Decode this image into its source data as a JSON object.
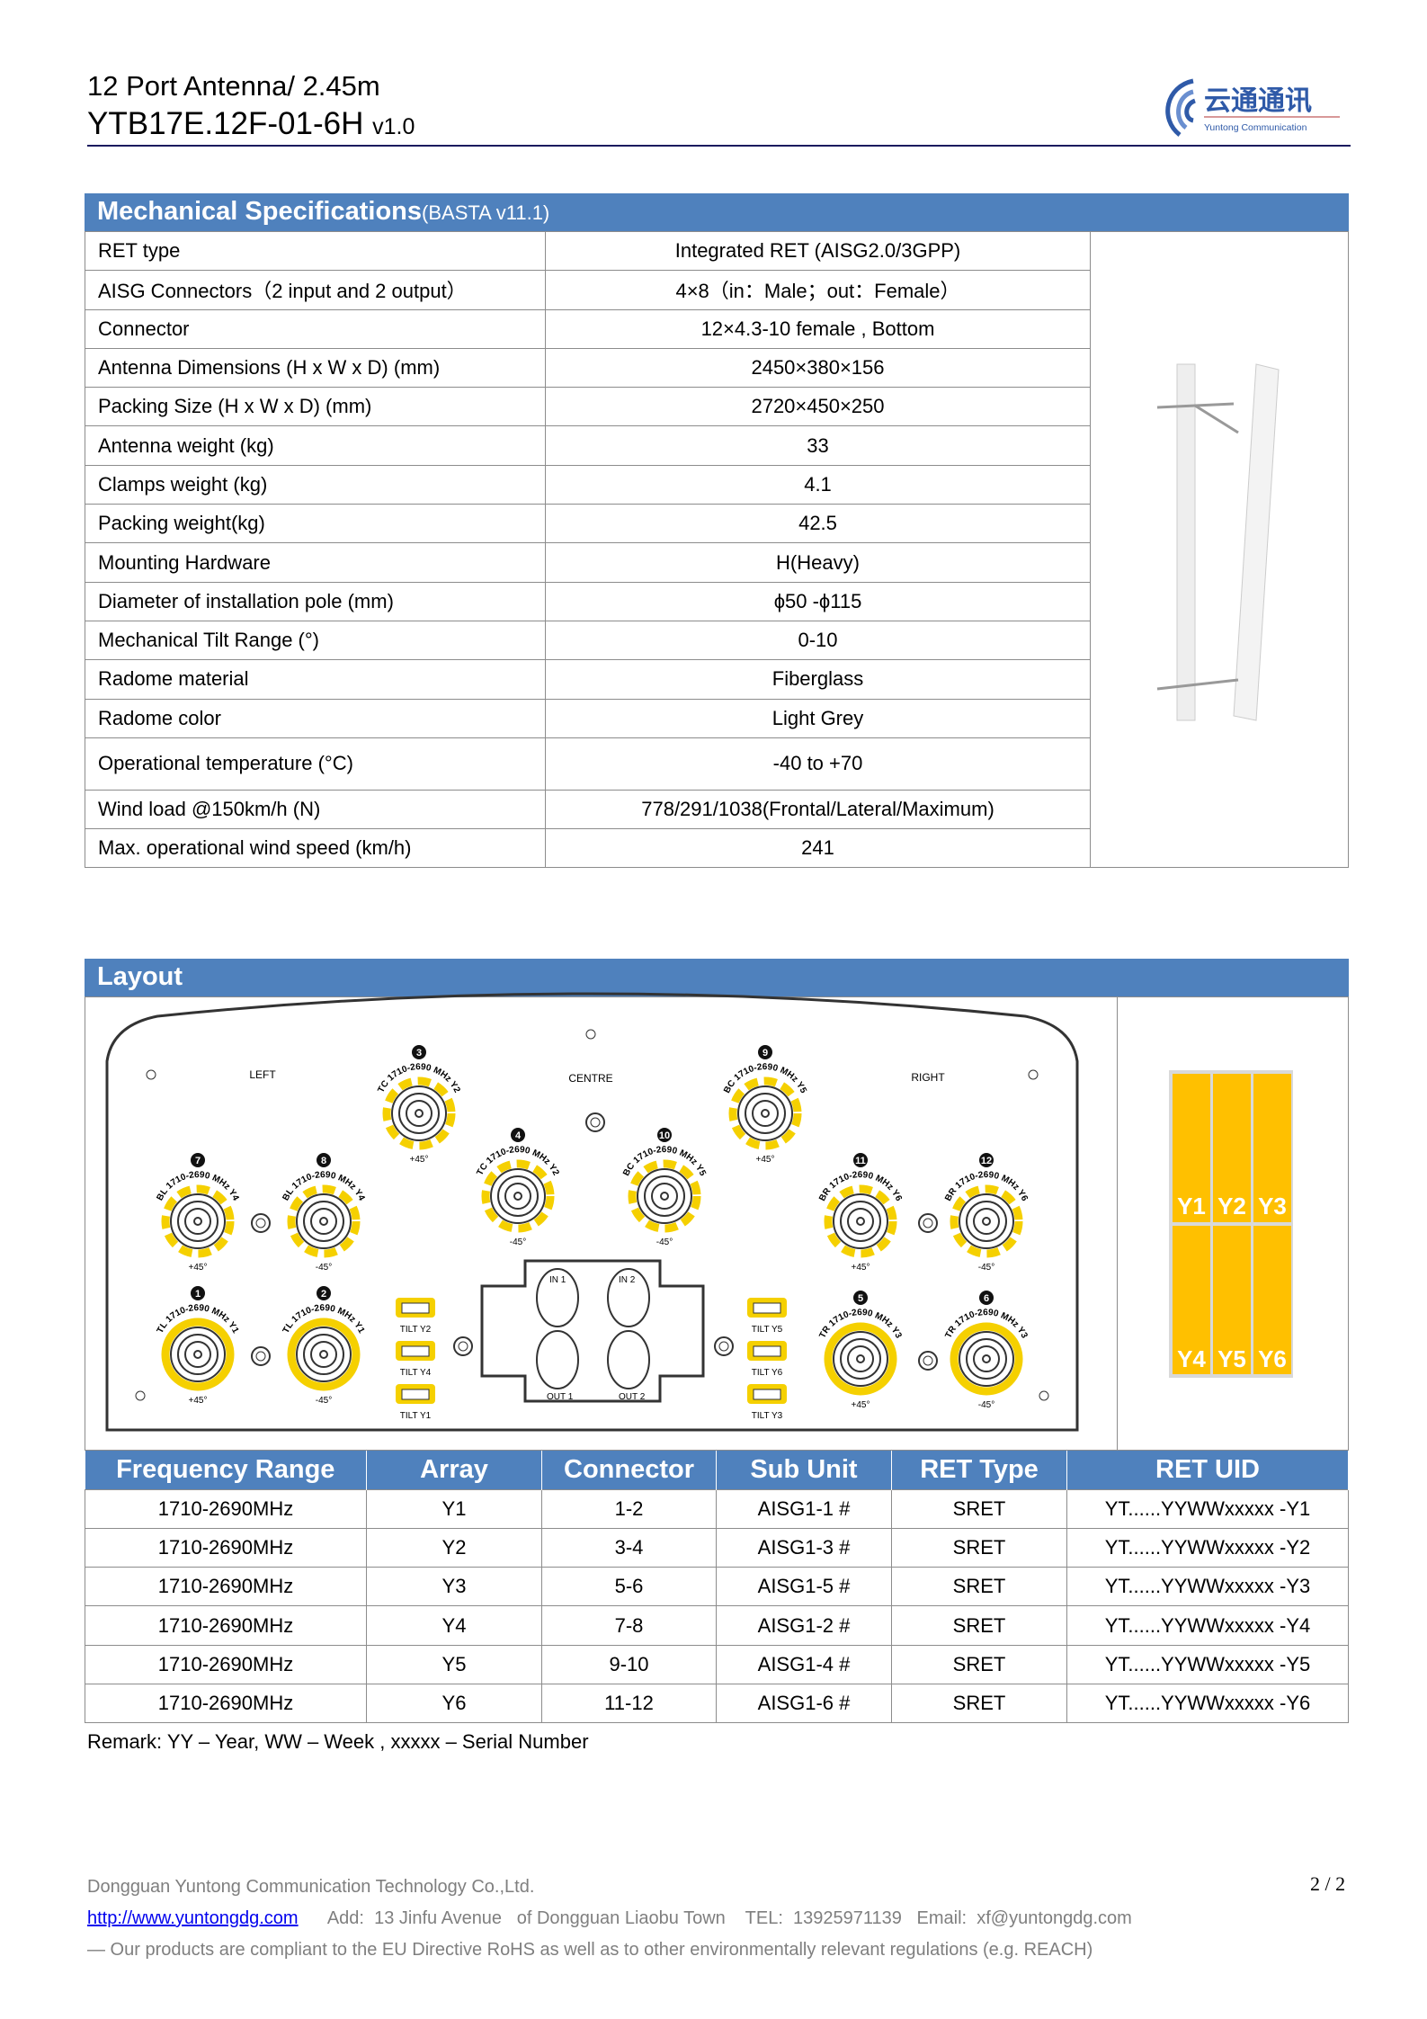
{
  "header": {
    "title": "12 Port Antenna/ 2.45m",
    "model": "YTB17E.12F-01-6H",
    "version": "v1.0",
    "logo_cn": "云通通讯",
    "logo_en": "Yuntong Communication"
  },
  "mechanical": {
    "title": "Mechanical Specifications",
    "subtitle": "(BASTA v11.1)",
    "rows": [
      [
        "RET type",
        "Integrated RET (AISG2.0/3GPP)"
      ],
      [
        "AISG Connectors（2 input and 2 output）",
        "4×8（in：Male；out：Female）"
      ],
      [
        "Connector",
        "12×4.3-10 female , Bottom"
      ],
      [
        "Antenna Dimensions (H x W x D) (mm)",
        "2450×380×156"
      ],
      [
        "Packing Size (H x W x D) (mm)",
        "2720×450×250"
      ],
      [
        "Antenna weight (kg)",
        "33"
      ],
      [
        "Clamps weight (kg)",
        "4.1"
      ],
      [
        "Packing weight(kg)",
        "42.5"
      ],
      [
        "Mounting Hardware",
        "H(Heavy)"
      ],
      [
        "Diameter of installation pole (mm)",
        "ϕ50 -ϕ115"
      ],
      [
        "Mechanical Tilt Range (°)",
        "0-10"
      ],
      [
        "Radome material",
        "Fiberglass"
      ],
      [
        "Radome color",
        "Light Grey"
      ],
      [
        "Operational temperature (°C)",
        "-40 to +70"
      ],
      [
        "Wind load @150km/h (N)",
        "778/291/1038(Frontal/Lateral/Maximum)"
      ],
      [
        "Max. operational wind speed (km/h)",
        "241"
      ]
    ]
  },
  "layout": {
    "title": "Layout",
    "left": "LEFT",
    "centre": "CENTRE",
    "right": "RIGHT",
    "connectors": [
      {
        "n": "3",
        "code": "TC",
        "band": "1710-2690 MHz",
        "array": "Y2",
        "pol": "+45°"
      },
      {
        "n": "9",
        "code": "BC",
        "band": "1710-2690 MHz",
        "array": "Y5",
        "pol": "+45°"
      },
      {
        "n": "4",
        "code": "TC",
        "band": "1710-2690 MHz",
        "array": "Y2",
        "pol": "-45°"
      },
      {
        "n": "10",
        "code": "BC",
        "band": "1710-2690 MHz",
        "array": "Y5",
        "pol": "-45°"
      },
      {
        "n": "7",
        "code": "BL",
        "band": "1710-2690 MHz",
        "array": "Y4",
        "pol": "+45°"
      },
      {
        "n": "8",
        "code": "BL",
        "band": "1710-2690 MHz",
        "array": "Y4",
        "pol": "-45°"
      },
      {
        "n": "11",
        "code": "BR",
        "band": "1710-2690 MHz",
        "array": "Y6",
        "pol": "+45°"
      },
      {
        "n": "12",
        "code": "BR",
        "band": "1710-2690 MHz",
        "array": "Y6",
        "pol": "-45°"
      },
      {
        "n": "1",
        "code": "TL",
        "band": "1710-2690 MHz",
        "array": "Y1",
        "pol": "+45°"
      },
      {
        "n": "2",
        "code": "TL",
        "band": "1710-2690 MHz",
        "array": "Y1",
        "pol": "-45°"
      },
      {
        "n": "5",
        "code": "TR",
        "band": "1710-2690 MHz",
        "array": "Y3",
        "pol": "+45°"
      },
      {
        "n": "6",
        "code": "TR",
        "band": "1710-2690 MHz",
        "array": "Y3",
        "pol": "-45°"
      }
    ],
    "tilts_left": [
      "TILT Y2",
      "TILT Y4",
      "TILT Y1"
    ],
    "tilts_right": [
      "TILT Y5",
      "TILT Y6",
      "TILT Y3"
    ],
    "module": {
      "in1": "IN 1",
      "in2": "IN 2",
      "out1": "OUT 1",
      "out2": "OUT 2"
    },
    "arrays": [
      "Y1",
      "Y2",
      "Y3",
      "Y4",
      "Y5",
      "Y6"
    ],
    "array_color": "#ffc000",
    "connector_color": "#f5d000"
  },
  "ret_table": {
    "headers": [
      "Frequency Range",
      "Array",
      "Connector",
      "Sub Unit",
      "RET Type",
      "RET UID"
    ],
    "rows": [
      [
        "1710-2690MHz",
        "Y1",
        "1-2",
        "AISG1-1 #",
        "SRET",
        "YT......YYWWxxxxx -Y1"
      ],
      [
        "1710-2690MHz",
        "Y2",
        "3-4",
        "AISG1-3 #",
        "SRET",
        "YT......YYWWxxxxx -Y2"
      ],
      [
        "1710-2690MHz",
        "Y3",
        "5-6",
        "AISG1-5 #",
        "SRET",
        "YT......YYWWxxxxx -Y3"
      ],
      [
        "1710-2690MHz",
        "Y4",
        "7-8",
        "AISG1-2 #",
        "SRET",
        "YT......YYWWxxxxx -Y4"
      ],
      [
        "1710-2690MHz",
        "Y5",
        "9-10",
        "AISG1-4 #",
        "SRET",
        "YT......YYWWxxxxx -Y5"
      ],
      [
        "1710-2690MHz",
        "Y6",
        "11-12",
        "AISG1-6 #",
        "SRET",
        "YT......YYWWxxxxx -Y6"
      ]
    ]
  },
  "remark": "Remark: YY – Year, WW – Week , xxxxx – Serial Number",
  "footer": {
    "company": "Dongguan Yuntong Communication Technology Co.,Ltd.",
    "url": "http://www.yuntongdg.com",
    "address": "Add:  13 Jinfu Avenue   of Dongguan Liaobu Town",
    "tel": "TEL:  13925971139",
    "email": "Email:  xf@yuntongdg.com",
    "compliance": "— Our products are compliant to the EU Directive RoHS as well as to other environmentally relevant regulations (e.g. REACH)",
    "page": "2 / 2"
  }
}
